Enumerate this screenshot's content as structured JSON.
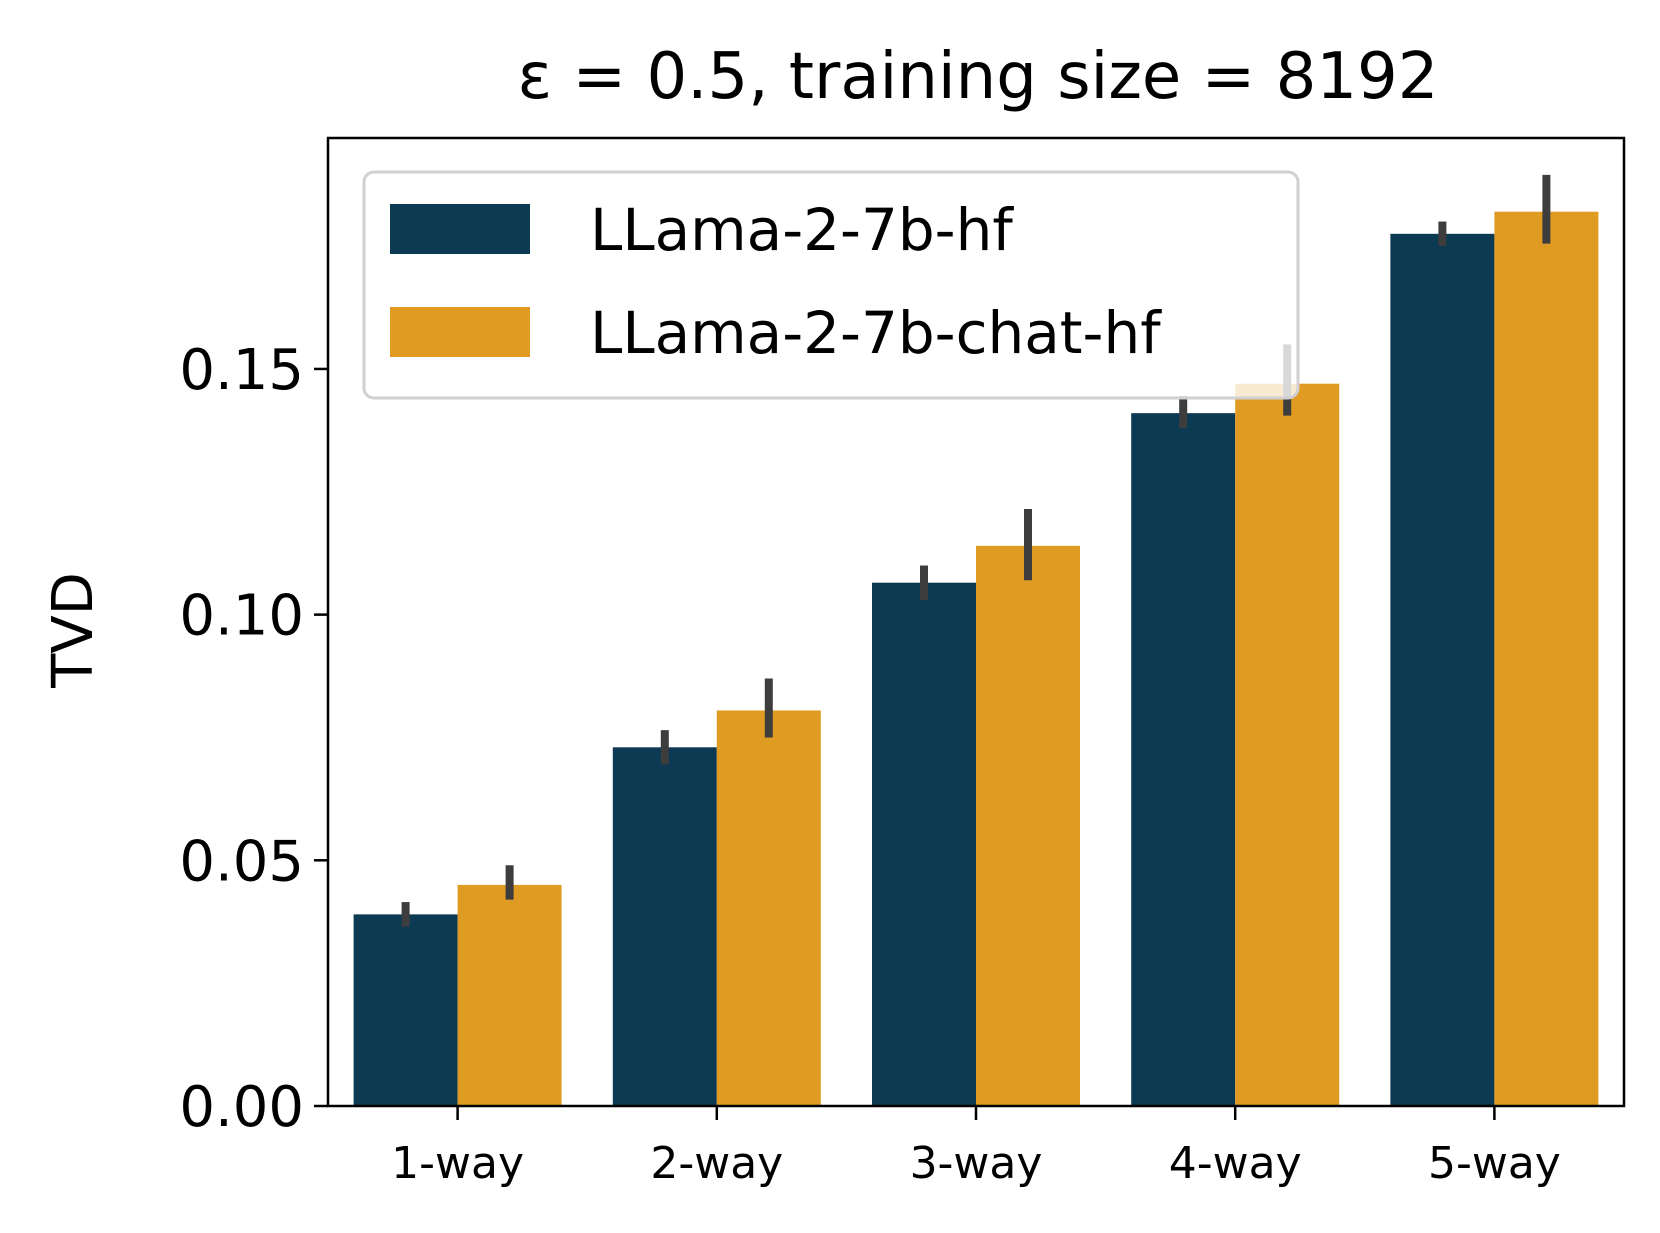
{
  "chart_data": {
    "type": "bar",
    "title": "ε = 0.5, training size = 8192",
    "xlabel": "",
    "ylabel": "TVD",
    "categories": [
      "1-way",
      "2-way",
      "3-way",
      "4-way",
      "5-way"
    ],
    "series": [
      {
        "name": "LLama-2-7b-hf",
        "color": "#0b3a52",
        "values": [
          0.039,
          0.073,
          0.1065,
          0.141,
          0.1775
        ],
        "error_low": [
          0.0365,
          0.0695,
          0.103,
          0.138,
          0.175
        ],
        "error_high": [
          0.0415,
          0.0765,
          0.11,
          0.1445,
          0.18
        ]
      },
      {
        "name": "LLama-2-7b-chat-hf",
        "color": "#e09b22",
        "values": [
          0.045,
          0.0805,
          0.114,
          0.147,
          0.182
        ],
        "error_low": [
          0.042,
          0.075,
          0.107,
          0.1405,
          0.1755
        ],
        "error_high": [
          0.049,
          0.087,
          0.1215,
          0.155,
          0.1895
        ]
      }
    ],
    "ylim": [
      0,
      0.197
    ],
    "yticks": [
      0.0,
      0.05,
      0.1,
      0.15
    ],
    "ytick_labels": [
      "0.00",
      "0.05",
      "0.10",
      "0.15"
    ],
    "grid": false,
    "legend_position": "upper-left",
    "errorbar_color": "#3d3d3d"
  }
}
